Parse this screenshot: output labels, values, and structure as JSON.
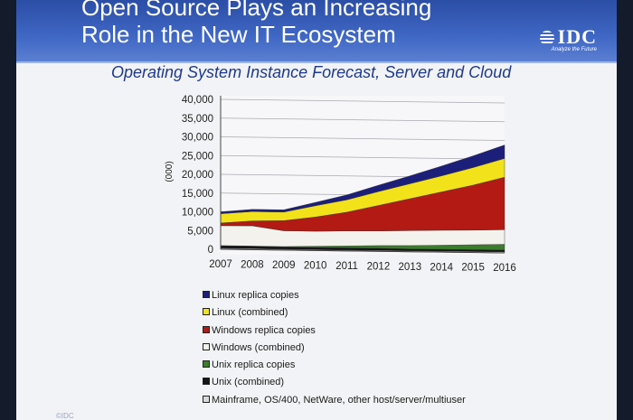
{
  "slide": {
    "title_lines": [
      "Open Source Plays an Increasing",
      "Role in the New IT Ecosystem"
    ],
    "logo": "IDC",
    "tagline": "Analyze the Future",
    "footer": "©IDC"
  },
  "colors": {
    "title_bar": "#3a61bd",
    "chart_title": "#1e3a8a",
    "slide_bg": "#f2f3f6"
  },
  "chart_data": {
    "type": "area",
    "stacked": true,
    "title": "Operating System Instance Forecast, Server and Cloud",
    "xlabel": "",
    "ylabel": "(000)",
    "ylim": [
      0,
      40000
    ],
    "yticks": [
      "0",
      "5,000",
      "10,000",
      "15,000",
      "20,000",
      "25,000",
      "30,000",
      "35,000",
      "40,000"
    ],
    "x": [
      "2007",
      "2008",
      "2009",
      "2010",
      "2011",
      "2012",
      "2013",
      "2014",
      "2015",
      "2016"
    ],
    "grid": true,
    "legend_position": "bottom",
    "series": [
      {
        "name": "Mainframe, OS/400, NetWare, other host/server/multiuser",
        "color": "#d9d9dc",
        "values": [
          300,
          300,
          300,
          300,
          300,
          300,
          300,
          300,
          300,
          300
        ]
      },
      {
        "name": "Unix (combined)",
        "color": "#151515",
        "values": [
          700,
          700,
          600,
          600,
          600,
          600,
          500,
          500,
          500,
          500
        ]
      },
      {
        "name": "Unix replica copies",
        "color": "#3a7d2c",
        "values": [
          0,
          0,
          100,
          300,
          500,
          700,
          900,
          1100,
          1300,
          1500
        ]
      },
      {
        "name": "Windows (combined)",
        "color": "#f4f2ec",
        "values": [
          5300,
          5400,
          4200,
          4000,
          4000,
          3900,
          4000,
          4000,
          3900,
          3900
        ]
      },
      {
        "name": "Windows replica copies",
        "color": "#b31a14",
        "values": [
          700,
          1300,
          2700,
          3800,
          5000,
          6800,
          8500,
          10200,
          12000,
          14000
        ]
      },
      {
        "name": "Linux (combined)",
        "color": "#f2e21a",
        "values": [
          2500,
          2500,
          2300,
          3000,
          3300,
          3700,
          4000,
          4300,
          4700,
          5000
        ]
      },
      {
        "name": "Linux replica copies",
        "color": "#1c1f7a",
        "values": [
          500,
          600,
          600,
          900,
          1300,
          1700,
          2100,
          2600,
          3100,
          3600
        ]
      }
    ]
  }
}
